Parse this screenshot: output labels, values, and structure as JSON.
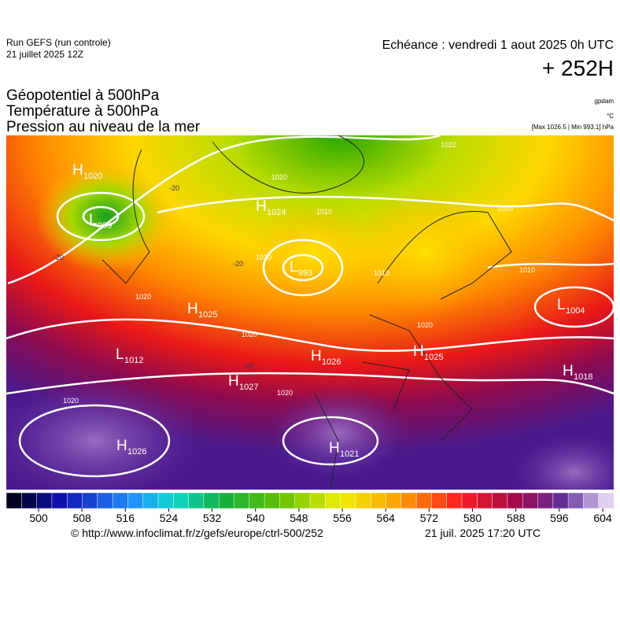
{
  "header": {
    "run": "Run GEFS (run controle)",
    "run_date": "21 juillet 2025 12Z",
    "valid": "Echéance : vendredi 1 aout 2025 0h UTC",
    "lead": "+ 252H"
  },
  "titles": [
    "Géopotentiel à 500hPa",
    "Température à 500hPa",
    "Pression au niveau de la mer"
  ],
  "units": {
    "geopotential": "gpdam",
    "temperature": "°C",
    "pressure": "[Max 1026.5 | Min 993.1] hPa"
  },
  "centers": [
    {
      "type": "H",
      "value": "1020"
    },
    {
      "type": "L",
      "value": "999"
    },
    {
      "type": "H",
      "value": "1024"
    },
    {
      "type": "L",
      "value": "993"
    },
    {
      "type": "H",
      "value": "1025"
    },
    {
      "type": "L",
      "value": "1012"
    },
    {
      "type": "H",
      "value": "1026"
    },
    {
      "type": "H",
      "value": "1027"
    },
    {
      "type": "H",
      "value": "1025"
    },
    {
      "type": "H",
      "value": "1018"
    },
    {
      "type": "L",
      "value": "1004"
    },
    {
      "type": "H",
      "value": "1021"
    },
    {
      "type": "H",
      "value": "1026"
    }
  ],
  "isobar_labels": [
    "1020",
    "1010",
    "1010",
    "1010",
    "1020",
    "1020",
    "1020",
    "1010",
    "1020",
    "1022",
    "1010",
    "1020"
  ],
  "temperature_labels": [
    "-20",
    "-20",
    "-20",
    "-20"
  ],
  "colorbar": {
    "ticks": [
      500,
      508,
      516,
      524,
      532,
      540,
      548,
      556,
      564,
      572,
      580,
      588,
      596,
      604
    ]
  },
  "footer": {
    "source": "© http://www.infoclimat.fr/z/gefs/europe/ctrl-500/252",
    "generated": "21 juil. 2025 17:20 UTC"
  }
}
